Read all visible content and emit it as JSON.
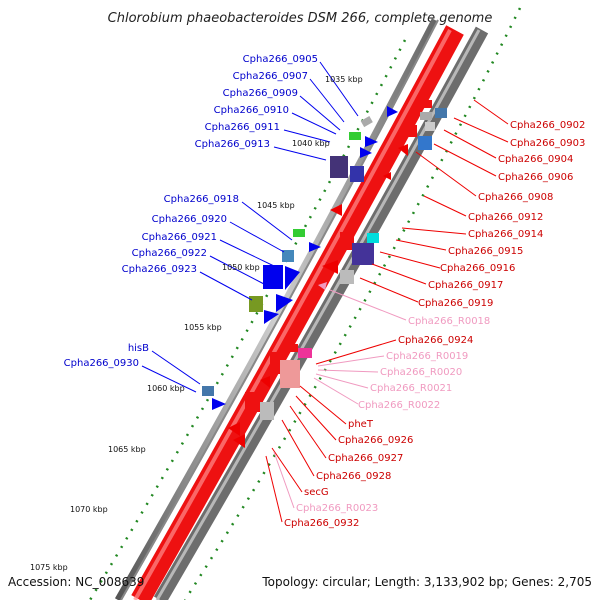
{
  "title": "Chlorobium phaeobacteroides DSM 266, complete genome",
  "footer": {
    "accession": "Accession: NC_008639",
    "topology": "Topology: circular; Length: 3,133,902 bp; Genes: 2,705"
  },
  "colors": {
    "forward_cds": "#0000ee",
    "reverse_cds": "#ee0000",
    "rna": "#f09ac0",
    "backbone": "#777777",
    "tick_dot": "#228822"
  },
  "scale_labels": [
    "1035 kbp",
    "1040 kbp",
    "1045 kbp",
    "1050 kbp",
    "1055 kbp",
    "1060 kbp",
    "1065 kbp",
    "1070 kbp",
    "1075 kbp"
  ],
  "left_genes": [
    "Cpha266_0905",
    "Cpha266_0907",
    "Cpha266_0909",
    "Cpha266_0910",
    "Cpha266_0911",
    "Cpha266_0913",
    "Cpha266_0918",
    "Cpha266_0920",
    "Cpha266_0921",
    "Cpha266_0922",
    "Cpha266_0923",
    "hisB",
    "Cpha266_0930"
  ],
  "right_genes": [
    "Cpha266_0902",
    "Cpha266_0903",
    "Cpha266_0904",
    "Cpha266_0906",
    "Cpha266_0908",
    "Cpha266_0912",
    "Cpha266_0914",
    "Cpha266_0915",
    "Cpha266_0916",
    "Cpha266_0917",
    "Cpha266_0919",
    "Cpha266_R0018",
    "Cpha266_0924",
    "Cpha266_R0019",
    "Cpha266_R0020",
    "Cpha266_R0021",
    "Cpha266_R0022",
    "pheT",
    "Cpha266_0926",
    "Cpha266_0927",
    "Cpha266_0928",
    "secG",
    "Cpha266_R0023",
    "Cpha266_0932"
  ],
  "right_gene_types": [
    "cds",
    "cds",
    "cds",
    "cds",
    "cds",
    "cds",
    "cds",
    "cds",
    "cds",
    "cds",
    "cds",
    "rna",
    "cds",
    "rna",
    "rna",
    "rna",
    "rna",
    "cds",
    "cds",
    "cds",
    "cds",
    "cds",
    "rna",
    "cds"
  ]
}
